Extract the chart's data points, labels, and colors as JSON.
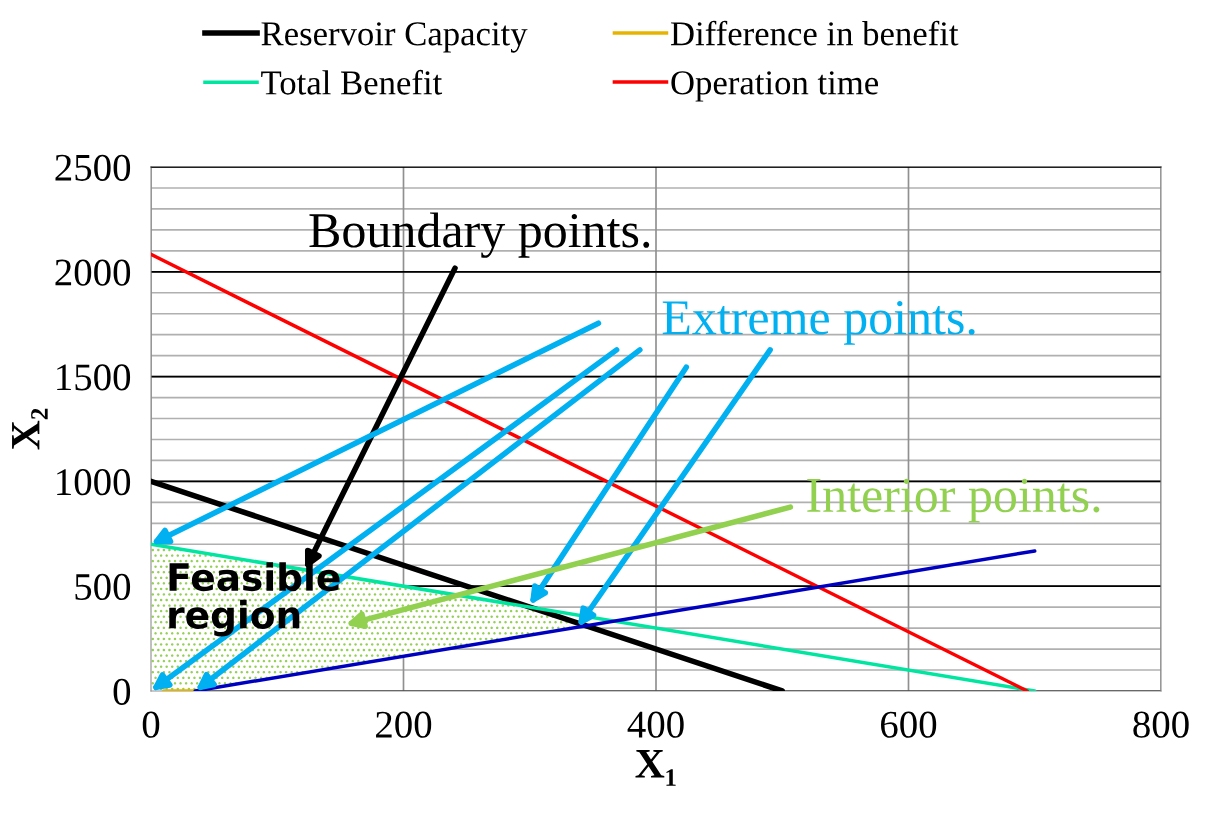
{
  "chart_data": {
    "type": "line",
    "xlabel": "X₁",
    "ylabel": "X₂",
    "xlim": [
      0,
      800
    ],
    "xticks": [
      0,
      200,
      400,
      600,
      800
    ],
    "ylim": [
      0,
      2500
    ],
    "yticks": [
      0,
      500,
      1000,
      1500,
      2000,
      2500
    ],
    "grid": true,
    "legend": "top",
    "marker": "none",
    "line_style": "solid",
    "series": [
      {
        "name": "Reservoir Capacity",
        "color": "#000000",
        "x": [
          0,
          500
        ],
        "values": [
          1000,
          0
        ]
      },
      {
        "name": "Total Benefit",
        "color": "#00e5a0",
        "x": [
          0,
          700
        ],
        "values": [
          700,
          0
        ]
      },
      {
        "name": "Difference in benefit",
        "color": "#e6b400",
        "x": [
          10,
          35
        ],
        "values": [
          0,
          0
        ]
      },
      {
        "name": "Operation time",
        "color": "#ff0000",
        "x": [
          0,
          694
        ],
        "values": [
          2083,
          0
        ]
      },
      {
        "color": "#0000c0",
        "x": [
          35,
          700
        ],
        "values": [
          0,
          668
        ]
      },
      {
        "type": "area",
        "color": "#92d050",
        "x": [
          0,
          35,
          300,
          340
        ],
        "values": [
          700,
          665,
          400,
          320
        ]
      }
    ],
    "annotations": [
      "Boundary points.",
      {
        "text": "Extreme points.",
        "x": 0,
        "y": 700
      },
      "Interior points.",
      "Feasible region"
    ]
  }
}
